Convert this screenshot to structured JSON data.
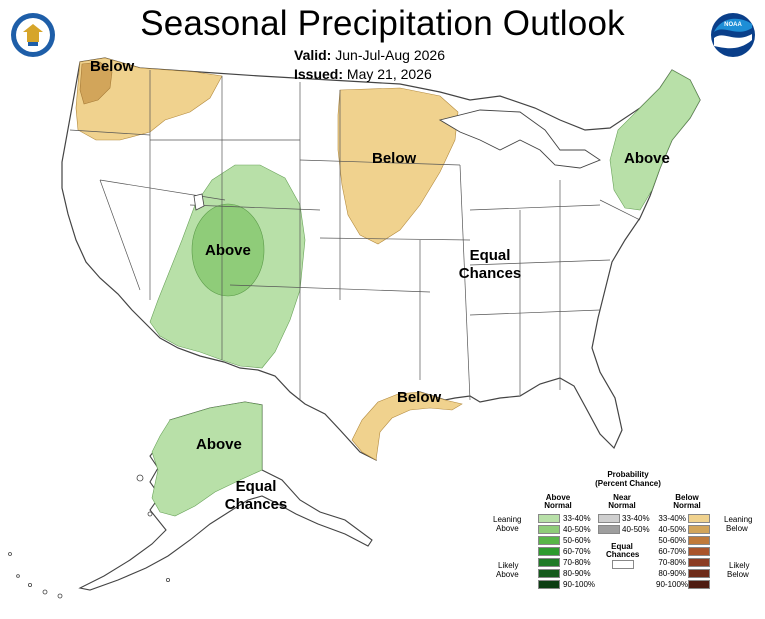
{
  "header": {
    "title": "Seasonal Precipitation Outlook",
    "valid_label": "Valid:",
    "valid_value": "Jun-Jul-Aug 2026",
    "issued_label": "Issued:",
    "issued_value": "May 21, 2026"
  },
  "logos": {
    "left": "doc-seal-icon",
    "right": "noaa-logo-icon"
  },
  "map_labels": {
    "nw_below": "Below",
    "plains_below": "Below",
    "sw_above": "Above",
    "ne_above": "Above",
    "equal_chances_line1": "Equal",
    "equal_chances_line2": "Chances",
    "gulf_below": "Below",
    "ak_above": "Above",
    "ak_equal_line1": "Equal",
    "ak_equal_line2": "Chances"
  },
  "colors": {
    "below_33_40": "#f0d28e",
    "below_40_50": "#d2a55a",
    "above_33_40": "#b8e0a8",
    "above_40_50": "#8fcc79",
    "outline": "#444444"
  },
  "legend": {
    "title_line1": "Probability",
    "title_line2": "(Percent Chance)",
    "col_above": [
      "Above",
      "Normal"
    ],
    "col_near": [
      "Near",
      "Normal"
    ],
    "col_below": [
      "Below",
      "Normal"
    ],
    "leaning_above": [
      "Leaning",
      "Above"
    ],
    "likely_above": [
      "Likely",
      "Above"
    ],
    "leaning_below": [
      "Leaning",
      "Below"
    ],
    "likely_below": [
      "Likely",
      "Below"
    ],
    "equal_chances": [
      "Equal",
      "Chances"
    ],
    "above_rows": [
      {
        "label": "33-40%",
        "color": "#b8e0a8"
      },
      {
        "label": "40-50%",
        "color": "#8fcc79"
      },
      {
        "label": "50-60%",
        "color": "#58b548"
      },
      {
        "label": "60-70%",
        "color": "#2e9a2e"
      },
      {
        "label": "70-80%",
        "color": "#1f7a26"
      },
      {
        "label": "80-90%",
        "color": "#155a1c"
      },
      {
        "label": "90-100%",
        "color": "#0c3d12"
      }
    ],
    "near_rows": [
      {
        "label": "33-40%",
        "color": "#cfcfcf"
      },
      {
        "label": "40-50%",
        "color": "#9e9e9e"
      }
    ],
    "below_rows": [
      {
        "label": "33-40%",
        "color": "#f0d28e"
      },
      {
        "label": "40-50%",
        "color": "#d2a55a"
      },
      {
        "label": "50-60%",
        "color": "#c07a3a"
      },
      {
        "label": "60-70%",
        "color": "#a9542b"
      },
      {
        "label": "70-80%",
        "color": "#8b3c23"
      },
      {
        "label": "80-90%",
        "color": "#6e2c1a"
      },
      {
        "label": "90-100%",
        "color": "#4e1c12"
      }
    ]
  }
}
